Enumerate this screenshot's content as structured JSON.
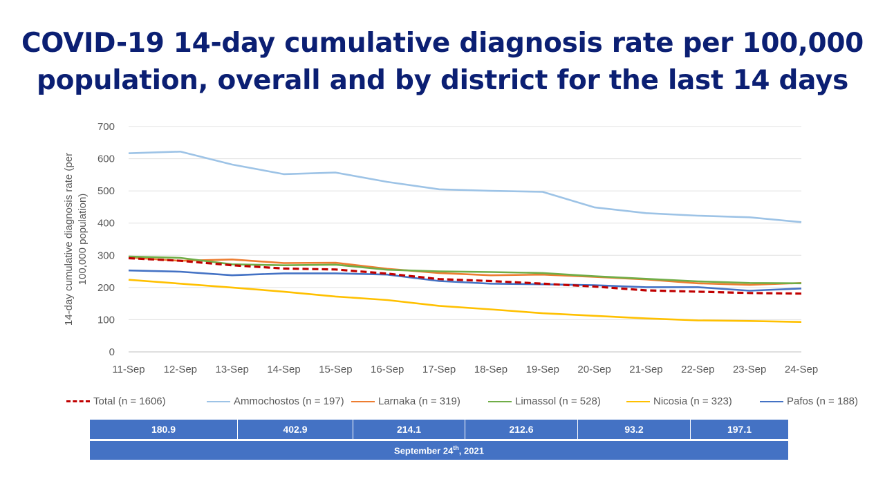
{
  "title": {
    "line1": "COVID-19 14-day cumulative diagnosis rate per 100,000",
    "line2": "population, overall and by district for the last 14 days"
  },
  "chart_data": {
    "type": "line",
    "ylabel_line1": "14-day cumulative diagnosis rate (per",
    "ylabel_line2": "100,000 population)",
    "ylim": [
      0,
      700
    ],
    "yticks": [
      0,
      100,
      200,
      300,
      400,
      500,
      600,
      700
    ],
    "grid": true,
    "legend_position": "bottom",
    "categories": [
      "11-Sep",
      "12-Sep",
      "13-Sep",
      "14-Sep",
      "15-Sep",
      "16-Sep",
      "17-Sep",
      "18-Sep",
      "19-Sep",
      "20-Sep",
      "21-Sep",
      "22-Sep",
      "23-Sep",
      "24-Sep"
    ],
    "series": [
      {
        "name": "Ammochostos (n = 197)",
        "color": "#9dc3e6",
        "dashed": false,
        "values": [
          617,
          622,
          582,
          552,
          557,
          528,
          505,
          500,
          497,
          449,
          431,
          423,
          418,
          403
        ]
      },
      {
        "name": "Larnaka (n = 319)",
        "color": "#ed7d31",
        "dashed": false,
        "values": [
          293,
          283,
          287,
          276,
          277,
          258,
          245,
          238,
          240,
          233,
          225,
          213,
          208,
          214
        ]
      },
      {
        "name": "Limassol (n = 528)",
        "color": "#70ad47",
        "dashed": false,
        "values": [
          296,
          292,
          272,
          269,
          271,
          255,
          250,
          248,
          245,
          235,
          227,
          219,
          214,
          213
        ]
      },
      {
        "name": "Nicosia (n = 323)",
        "color": "#ffc000",
        "dashed": false,
        "values": [
          224,
          212,
          200,
          187,
          172,
          161,
          143,
          132,
          120,
          112,
          104,
          98,
          96,
          93
        ]
      },
      {
        "name": "Pafos (n = 188)",
        "color": "#4472c4",
        "dashed": false,
        "values": [
          253,
          249,
          238,
          244,
          244,
          240,
          220,
          212,
          210,
          207,
          201,
          201,
          190,
          197
        ]
      },
      {
        "name": "Total (n = 1606)",
        "color": "#c00000",
        "dashed": true,
        "values": [
          291,
          283,
          269,
          259,
          256,
          243,
          226,
          220,
          212,
          203,
          191,
          187,
          183,
          181
        ]
      }
    ],
    "legend_order": [
      5,
      0,
      1,
      2,
      3,
      4
    ]
  },
  "table": {
    "values": [
      "180.9",
      "402.9",
      "214.1",
      "212.6",
      "93.2",
      "197.1"
    ],
    "date_main": "September 24",
    "date_sup": "th",
    "date_tail": ", 2021"
  }
}
